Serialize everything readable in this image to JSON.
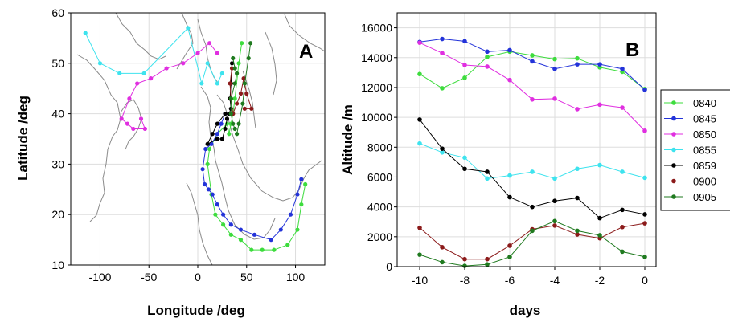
{
  "colors": {
    "0840": "#3ddc3d",
    "0845": "#2333d9",
    "0850": "#e02fe0",
    "0855": "#3ee3ee",
    "0859": "#000000",
    "0900": "#8b1a1a",
    "0905": "#1f7a1f"
  },
  "chart_data": [
    {
      "type": "scatter",
      "panel_label": "A",
      "xlabel": "Longitude /deg",
      "ylabel": "Latitude /deg",
      "xlim": [
        -130,
        130
      ],
      "ylim": [
        10,
        60
      ],
      "xticks": [
        "-100",
        "-50",
        "0",
        "50",
        "100"
      ],
      "yticks": [
        "10",
        "20",
        "30",
        "40",
        "50",
        "60"
      ],
      "grid": true,
      "background": "coastline map",
      "series": [
        {
          "id": "0840",
          "points": [
            [
              45,
              54
            ],
            [
              42,
              50
            ],
            [
              38,
              43
            ],
            [
              36,
              40
            ],
            [
              34,
              38
            ],
            [
              32,
              36
            ],
            [
              30,
              38
            ],
            [
              20,
              36
            ],
            [
              12,
              33
            ],
            [
              10,
              30
            ],
            [
              14,
              24
            ],
            [
              18,
              20
            ],
            [
              26,
              18
            ],
            [
              34,
              16
            ],
            [
              44,
              15
            ],
            [
              55,
              13
            ],
            [
              66,
              13
            ],
            [
              78,
              13
            ],
            [
              92,
              14
            ],
            [
              102,
              17
            ],
            [
              106,
              22
            ],
            [
              110,
              26
            ]
          ]
        },
        {
          "id": "0845",
          "points": [
            [
              28,
              40
            ],
            [
              24,
              38
            ],
            [
              20,
              36
            ],
            [
              14,
              34
            ],
            [
              8,
              33
            ],
            [
              5,
              29
            ],
            [
              7,
              26
            ],
            [
              11,
              25
            ],
            [
              15,
              24
            ],
            [
              20,
              22
            ],
            [
              26,
              20
            ],
            [
              34,
              18
            ],
            [
              44,
              17
            ],
            [
              58,
              16
            ],
            [
              75,
              15
            ],
            [
              85,
              17
            ],
            [
              95,
              20
            ],
            [
              102,
              24
            ],
            [
              106,
              27
            ]
          ]
        },
        {
          "id": "0850",
          "points": [
            [
              -58,
              39
            ],
            [
              -54,
              37
            ],
            [
              -66,
              37
            ],
            [
              -72,
              38
            ],
            [
              -78,
              39
            ],
            [
              -70,
              43
            ],
            [
              -62,
              46
            ],
            [
              -48,
              47
            ],
            [
              -32,
              49
            ],
            [
              -15,
              50
            ],
            [
              0,
              52
            ],
            [
              12,
              54
            ],
            [
              20,
              52
            ]
          ]
        },
        {
          "id": "0855",
          "points": [
            [
              -115,
              56
            ],
            [
              -100,
              50
            ],
            [
              -80,
              48
            ],
            [
              -55,
              48
            ],
            [
              -10,
              57
            ],
            [
              4,
              46
            ],
            [
              10,
              50
            ],
            [
              20,
              46
            ],
            [
              25,
              48
            ]
          ]
        },
        {
          "id": "0859",
          "points": [
            [
              28,
              40
            ],
            [
              20,
              38
            ],
            [
              15,
              36
            ],
            [
              10,
              34
            ],
            [
              20,
              35
            ],
            [
              25,
              35
            ],
            [
              28,
              37
            ],
            [
              30,
              39
            ],
            [
              32,
              40
            ],
            [
              34,
              41
            ],
            [
              33,
              43
            ],
            [
              34,
              46
            ],
            [
              35,
              50
            ]
          ]
        },
        {
          "id": "0900",
          "points": [
            [
              35,
              49
            ],
            [
              33,
              46
            ],
            [
              34,
              43
            ],
            [
              36,
              40
            ],
            [
              40,
              42
            ],
            [
              44,
              44
            ],
            [
              47,
              47
            ],
            [
              50,
              44
            ],
            [
              55,
              41
            ],
            [
              48,
              41
            ]
          ]
        },
        {
          "id": "0905",
          "points": [
            [
              36,
              51
            ],
            [
              38,
              49
            ],
            [
              40,
              48
            ],
            [
              38,
              46
            ],
            [
              34,
              43
            ],
            [
              34,
              40
            ],
            [
              36,
              38
            ],
            [
              38,
              37
            ],
            [
              40,
              36
            ],
            [
              42,
              38
            ],
            [
              46,
              42
            ],
            [
              48,
              46
            ],
            [
              52,
              51
            ],
            [
              54,
              54
            ]
          ]
        }
      ]
    },
    {
      "type": "line",
      "panel_label": "B",
      "xlabel": "days",
      "ylabel": "Altitude /m",
      "xlim": [
        -11,
        0.5
      ],
      "ylim": [
        0,
        17000
      ],
      "xticks": [
        "-10",
        "-8",
        "-6",
        "-4",
        "-2",
        "0"
      ],
      "yticks": [
        "0",
        "2000",
        "4000",
        "6000",
        "8000",
        "10000",
        "12000",
        "14000",
        "16000"
      ],
      "grid": true,
      "legend_position": "right",
      "x": [
        -10,
        -9,
        -8,
        -7,
        -6,
        -5,
        -4,
        -3,
        -2,
        -1,
        0
      ],
      "series": [
        {
          "name": "0840",
          "values": [
            12900,
            11950,
            12650,
            14050,
            14400,
            14150,
            13900,
            13950,
            13350,
            13050,
            11900
          ]
        },
        {
          "name": "0845",
          "values": [
            15050,
            15250,
            15100,
            14400,
            14500,
            13750,
            13250,
            13550,
            13550,
            13250,
            11850
          ]
        },
        {
          "name": "0850",
          "values": [
            15000,
            14300,
            13500,
            13400,
            12500,
            11200,
            11250,
            10550,
            10850,
            10650,
            9100
          ]
        },
        {
          "name": "0855",
          "values": [
            8250,
            7650,
            7300,
            5900,
            6100,
            6350,
            5900,
            6550,
            6800,
            6350,
            5950
          ]
        },
        {
          "name": "0859",
          "values": [
            9850,
            7900,
            6550,
            6350,
            4650,
            4000,
            4400,
            4600,
            3250,
            3800,
            3500
          ]
        },
        {
          "name": "0900",
          "values": [
            2600,
            1300,
            500,
            500,
            1400,
            2500,
            2750,
            2150,
            1900,
            2650,
            2900
          ]
        },
        {
          "name": "0905",
          "values": [
            800,
            300,
            50,
            150,
            650,
            2400,
            3050,
            2400,
            2100,
            1000,
            650
          ]
        }
      ]
    }
  ]
}
